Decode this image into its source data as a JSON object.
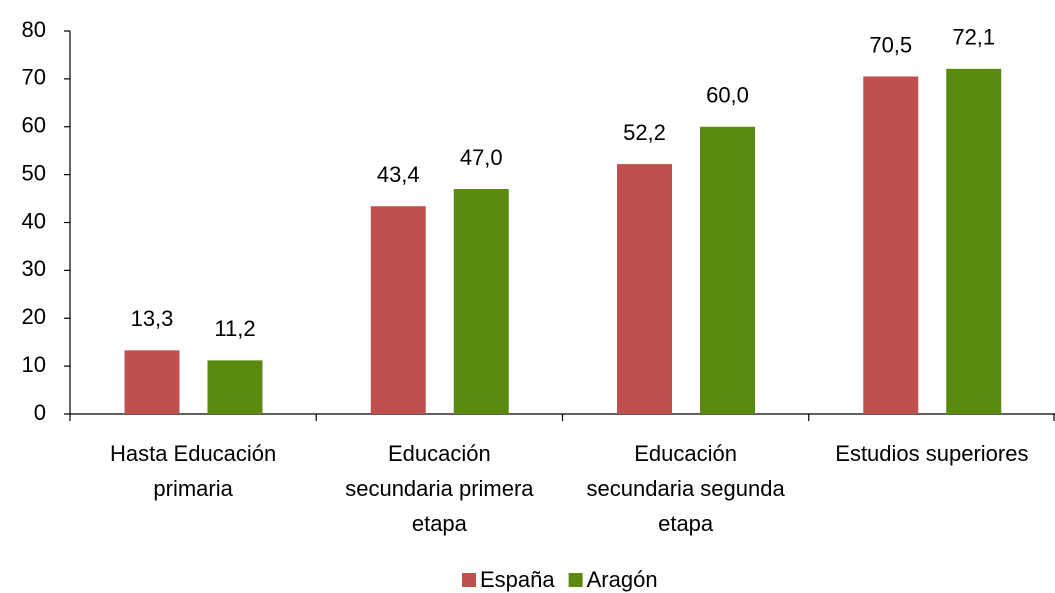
{
  "chart_data": {
    "type": "bar",
    "categories": [
      [
        "Hasta Educación",
        "primaria"
      ],
      [
        "Educación",
        "secundaria primera",
        "etapa"
      ],
      [
        "Educación",
        "secundaria segunda",
        "etapa"
      ],
      [
        "Estudios superiores"
      ]
    ],
    "series": [
      {
        "name": "España",
        "color": "#c0504d",
        "values": [
          13.3,
          43.4,
          52.2,
          70.5
        ],
        "value_labels": [
          "13,3",
          "43,4",
          "52,2",
          "70,5"
        ]
      },
      {
        "name": "Aragón",
        "color": "#5a8a0f",
        "values": [
          11.2,
          47.0,
          60.0,
          72.1
        ],
        "value_labels": [
          "11,2",
          "47,0",
          "60,0",
          "72,1"
        ]
      }
    ],
    "ylim": [
      0,
      80
    ],
    "yticks": [
      0,
      10,
      20,
      30,
      40,
      50,
      60,
      70,
      80
    ],
    "grid": false,
    "legend": "bottom"
  }
}
